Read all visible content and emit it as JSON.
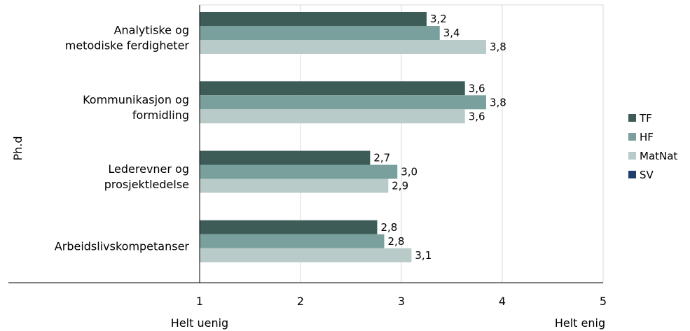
{
  "chart_data": {
    "type": "bar",
    "orientation": "horizontal",
    "group_axis_label": "Ph.d",
    "categories": [
      [
        "Analytiske og",
        "metodiske ferdigheter"
      ],
      [
        "Kommunikasjon og",
        "formidling"
      ],
      [
        "Lederevner og",
        "prosjektledelse"
      ],
      [
        "Arbeidslivskompetanser"
      ]
    ],
    "series": [
      {
        "name": "TF",
        "color": "#3d5c58",
        "values": [
          3.25,
          3.63,
          2.69,
          2.76
        ],
        "labels": [
          "3,2",
          "3,6",
          "2,7",
          "2,8"
        ]
      },
      {
        "name": "HF",
        "color": "#79a09d",
        "values": [
          3.38,
          3.84,
          2.96,
          2.83
        ],
        "labels": [
          "3,4",
          "3,8",
          "3,0",
          "2,8"
        ]
      },
      {
        "name": "MatNat",
        "color": "#b8cbc8",
        "values": [
          3.84,
          3.63,
          2.87,
          3.1
        ],
        "labels": [
          "3,8",
          "3,6",
          "2,9",
          "3,1"
        ]
      },
      {
        "name": "SV",
        "color": "#1f3e6e",
        "values": [
          null,
          null,
          null,
          null
        ],
        "labels": [
          "",
          "",
          "",
          ""
        ]
      }
    ],
    "xlim": [
      1,
      5
    ],
    "xticks": [
      "1",
      "2",
      "3",
      "4",
      "5"
    ],
    "x_endpoint_labels": {
      "low": "Helt uenig",
      "high": "Helt enig"
    },
    "grid": true,
    "legend_position": "right"
  }
}
